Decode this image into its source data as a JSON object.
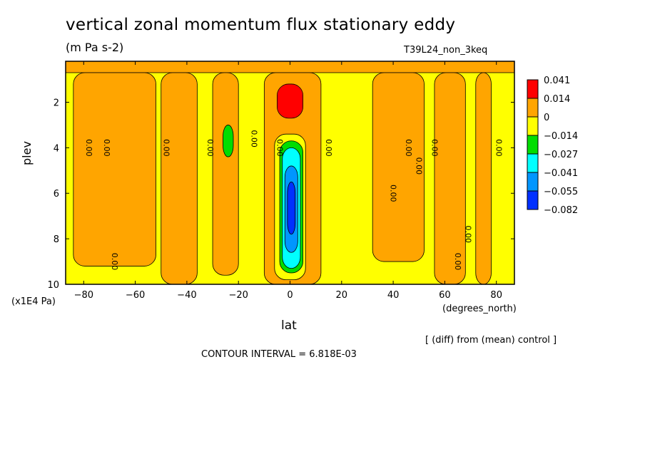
{
  "header": {
    "title": "vertical zonal momentum flux stationary eddy",
    "subtitle": "(m Pa s-2)",
    "run_id": "T39L24_non_3keq"
  },
  "axes": {
    "ylabel": "plev",
    "yunits": "(x1E4 Pa)",
    "xlabel": "lat",
    "xunits": "(degrees_north)"
  },
  "notes": {
    "diff": "[ (diff) from (mean) control ]",
    "contour_interval": "CONTOUR INTERVAL = 6.818E-03"
  },
  "chart_data": {
    "type": "heatmap",
    "x_label": "lat",
    "y_label": "plev",
    "xlim": [
      -87,
      87
    ],
    "ylim": [
      10,
      0.2
    ],
    "x_ticks": [
      -80,
      -60,
      -40,
      -20,
      0,
      20,
      40,
      60,
      80
    ],
    "y_ticks": [
      2,
      4,
      6,
      8,
      10
    ],
    "legend": {
      "position": "right",
      "colors": [
        "#ff0000",
        "#ffa500",
        "#ffff00",
        "#00dd00",
        "#00ffff",
        "#0096ff",
        "#0030ff"
      ],
      "labels": [
        "0.041",
        "0.014",
        "0",
        "-0.014",
        "-0.027",
        "-0.041",
        "-0.055",
        "-0.082"
      ]
    },
    "background_color": "#ffff00",
    "regions": [
      {
        "value": "orange",
        "color": "#ffa500",
        "lat": [
          -87,
          87
        ],
        "plev": [
          0.2,
          0.7
        ]
      },
      {
        "value": "orange",
        "color": "#ffa500",
        "lat": [
          -84,
          -52
        ],
        "plev": [
          0.7,
          9.2
        ]
      },
      {
        "value": "orange",
        "color": "#ffa500",
        "lat": [
          -50,
          -36
        ],
        "plev": [
          0.7,
          10
        ]
      },
      {
        "value": "orange",
        "color": "#ffa500",
        "lat": [
          -30,
          -20
        ],
        "plev": [
          0.7,
          9.6
        ]
      },
      {
        "value": "orange",
        "color": "#ffa500",
        "lat": [
          -10,
          12
        ],
        "plev": [
          0.7,
          10
        ]
      },
      {
        "value": "orange",
        "color": "#ffa500",
        "lat": [
          32,
          52
        ],
        "plev": [
          0.7,
          9.0
        ]
      },
      {
        "value": "orange",
        "color": "#ffa500",
        "lat": [
          56,
          68
        ],
        "plev": [
          0.7,
          10
        ]
      },
      {
        "value": "orange",
        "color": "#ffa500",
        "lat": [
          72,
          78
        ],
        "plev": [
          0.7,
          10
        ]
      },
      {
        "value": "red",
        "color": "#ff0000",
        "lat": [
          -5,
          5
        ],
        "plev": [
          1.2,
          2.7
        ]
      },
      {
        "value": "green",
        "color": "#00dd00",
        "lat": [
          -26,
          -22
        ],
        "plev": [
          3.0,
          4.4
        ]
      },
      {
        "value": "yellow",
        "color": "#ffff00",
        "lat": [
          -6,
          6
        ],
        "plev": [
          3.4,
          9.8
        ]
      },
      {
        "value": "green",
        "color": "#00dd00",
        "lat": [
          -4,
          5
        ],
        "plev": [
          3.7,
          9.5
        ]
      },
      {
        "value": "cyan",
        "color": "#00ffff",
        "lat": [
          -3,
          4
        ],
        "plev": [
          4.0,
          9.3
        ]
      },
      {
        "value": "blue",
        "color": "#0096ff",
        "lat": [
          -2,
          3
        ],
        "plev": [
          4.8,
          8.6
        ]
      },
      {
        "value": "dark-blue",
        "color": "#0030ff",
        "lat": [
          -1,
          2
        ],
        "plev": [
          5.5,
          7.8
        ]
      }
    ],
    "contour_labels": [
      {
        "text": "0.00",
        "lat": -79,
        "plev": 4.0
      },
      {
        "text": "0.00",
        "lat": -72,
        "plev": 4.0
      },
      {
        "text": "0.00",
        "lat": -49,
        "plev": 4.0
      },
      {
        "text": "0.00",
        "lat": -32,
        "plev": 4.0
      },
      {
        "text": "0.00",
        "lat": -15,
        "plev": 3.6
      },
      {
        "text": "0.00",
        "lat": -5,
        "plev": 4.0
      },
      {
        "text": "0.00",
        "lat": 14,
        "plev": 4.0
      },
      {
        "text": "0.00",
        "lat": 45,
        "plev": 4.0
      },
      {
        "text": "0.00",
        "lat": 49,
        "plev": 4.8
      },
      {
        "text": "0.00",
        "lat": 55,
        "plev": 4.0
      },
      {
        "text": "0.00",
        "lat": 80,
        "plev": 4.0
      },
      {
        "text": "0.00",
        "lat": 39,
        "plev": 6.0
      },
      {
        "text": "0.00",
        "lat": 68,
        "plev": 7.8
      },
      {
        "text": "0.00",
        "lat": 64,
        "plev": 9.0
      },
      {
        "text": "0.00",
        "lat": -69,
        "plev": 9.0
      }
    ]
  }
}
